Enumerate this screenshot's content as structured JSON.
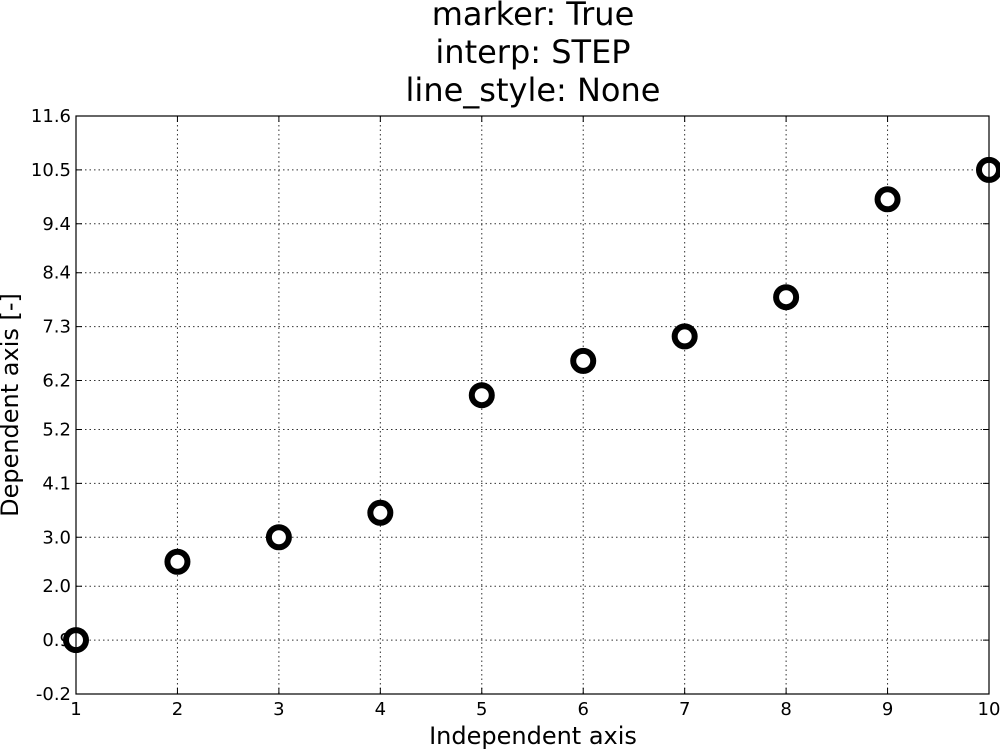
{
  "chart_data": {
    "type": "scatter",
    "title_lines": [
      "marker: True",
      "interp: STEP",
      "line_style: None"
    ],
    "xlabel": "Independent axis",
    "ylabel": "Dependent axis [-]",
    "xlim": [
      1,
      10
    ],
    "ylim": [
      -0.2,
      11.6
    ],
    "xticks": [
      1,
      2,
      3,
      4,
      5,
      6,
      7,
      8,
      9,
      10
    ],
    "yticks": [
      -0.2,
      0.9,
      2.0,
      3.0,
      4.1,
      5.2,
      6.2,
      7.3,
      8.4,
      9.4,
      10.5,
      11.6
    ],
    "ytick_labels": [
      "-0.2",
      "0.9",
      "2.0",
      "3.0",
      "4.1",
      "5.2",
      "6.2",
      "7.3",
      "8.4",
      "9.4",
      "10.5",
      "11.6"
    ],
    "grid": true,
    "series": [
      {
        "x": [
          1,
          2,
          3,
          4,
          5,
          6,
          7,
          8,
          9,
          10
        ],
        "y": [
          0.9,
          2.5,
          3.0,
          3.5,
          5.9,
          6.6,
          7.1,
          7.9,
          9.9,
          10.5
        ],
        "marker": "circle",
        "color": "#000000"
      }
    ]
  }
}
